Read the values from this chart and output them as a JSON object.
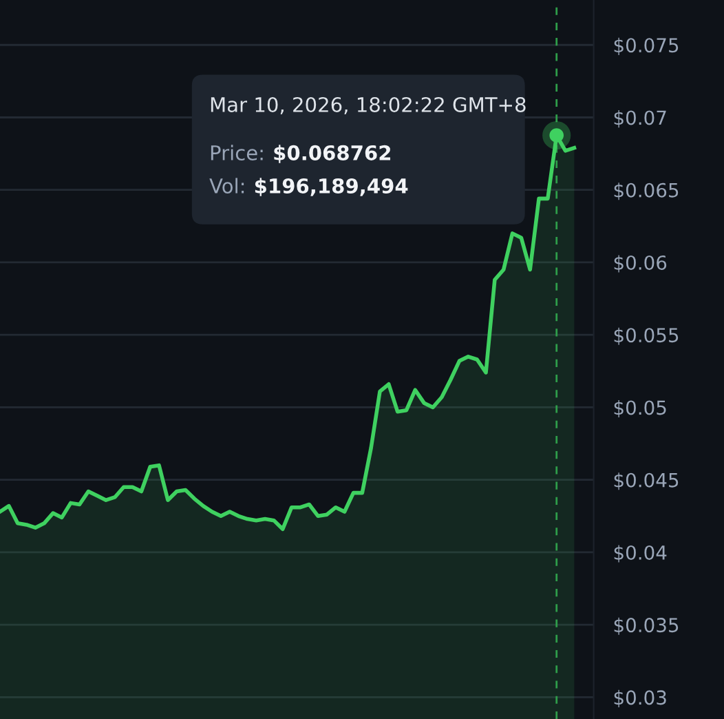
{
  "chart_data": {
    "type": "area",
    "categories": [
      null,
      null,
      null,
      null,
      null,
      null,
      null,
      null,
      null,
      null,
      null,
      null,
      null,
      null,
      null,
      null,
      null,
      null,
      null,
      null,
      null,
      null,
      null,
      null,
      null,
      null,
      null,
      null,
      null,
      null,
      null,
      null,
      null,
      null,
      null,
      null,
      null,
      null,
      null,
      null,
      null,
      null,
      null,
      null,
      null,
      null,
      null,
      null,
      null,
      null,
      null,
      null,
      null,
      null,
      null,
      null,
      null,
      null,
      null,
      null,
      null,
      null,
      null,
      null,
      null,
      null
    ],
    "series": [
      {
        "color": "#3fd160",
        "values": [
          0.0428,
          0.0432,
          0.042,
          0.0419,
          0.0417,
          0.042,
          0.0427,
          0.0424,
          0.0434,
          0.0433,
          0.0442,
          0.0439,
          0.0436,
          0.0438,
          0.0445,
          0.0445,
          0.0442,
          0.0459,
          0.046,
          0.0436,
          0.0442,
          0.0443,
          0.0437,
          0.0432,
          0.0428,
          0.0425,
          0.0428,
          0.0425,
          0.0423,
          0.0422,
          0.0423,
          0.0422,
          0.0416,
          0.0431,
          0.0431,
          0.0433,
          0.0425,
          0.0426,
          0.0431,
          0.0428,
          0.0441,
          0.0441,
          0.0472,
          0.0511,
          0.0516,
          0.0497,
          0.0498,
          0.0512,
          0.0503,
          0.05,
          0.0507,
          0.0519,
          0.0532,
          0.0535,
          0.0533,
          0.0524,
          0.0588,
          0.0595,
          0.062,
          0.0617,
          0.0595,
          0.0644,
          0.0644,
          0.068762,
          0.0677,
          0.0679
        ]
      }
    ],
    "ylim": [
      0.0285,
      0.0781
    ],
    "yticks": [
      {
        "value": 0.03,
        "label": "$0.03"
      },
      {
        "value": 0.035,
        "label": "$0.035"
      },
      {
        "value": 0.04,
        "label": "$0.04"
      },
      {
        "value": 0.045,
        "label": "$0.045"
      },
      {
        "value": 0.05,
        "label": "$0.05"
      },
      {
        "value": 0.055,
        "label": "$0.055"
      },
      {
        "value": 0.06,
        "label": "$0.06"
      },
      {
        "value": 0.065,
        "label": "$0.065"
      },
      {
        "value": 0.07,
        "label": "$0.07"
      },
      {
        "value": 0.075,
        "label": "$0.075"
      }
    ],
    "grid": "y",
    "annotations": [
      "Mar 10, 2026, 18:02:22 GMT+8",
      "Price:",
      "$0.068762",
      "Vol:",
      "$196,189,494"
    ]
  }
}
